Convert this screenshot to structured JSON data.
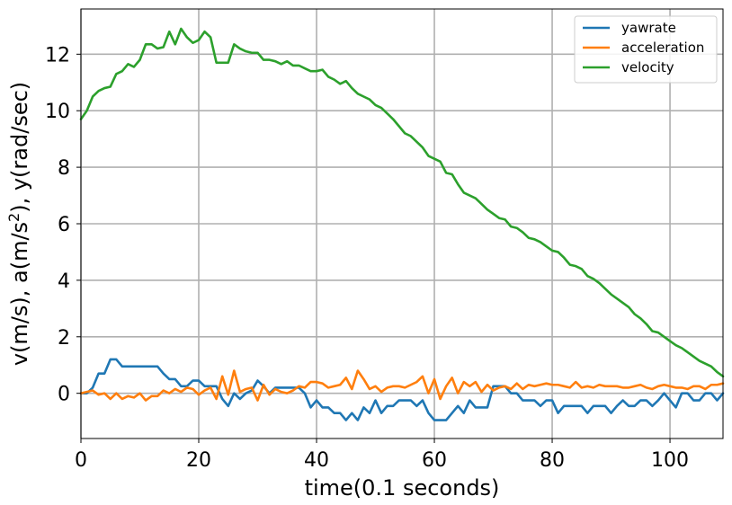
{
  "chart_data": {
    "type": "line",
    "title": "",
    "xlabel": "time(0.1 seconds)",
    "ylabel_parts": {
      "base": "v(m/s), a(m/s",
      "sup": "2",
      "tail": "), y(rad/sec)"
    },
    "xlim": [
      0,
      109
    ],
    "ylim": [
      -1.6,
      13.6
    ],
    "xticks": [
      0,
      20,
      40,
      60,
      80,
      100
    ],
    "yticks": [
      0,
      2,
      4,
      6,
      8,
      10,
      12
    ],
    "grid": true,
    "legend_position": "top-right",
    "series": [
      {
        "name": "yawrate",
        "color": "#1f77b4",
        "values": [
          0,
          0,
          0.2,
          0.7,
          0.7,
          1.2,
          1.2,
          0.95,
          0.95,
          0.95,
          0.95,
          0.95,
          0.95,
          0.95,
          0.7,
          0.5,
          0.5,
          0.25,
          0.25,
          0.45,
          0.45,
          0.25,
          0.25,
          0.25,
          -0.2,
          -0.45,
          0,
          -0.2,
          0,
          0.1,
          0.45,
          0.25,
          0,
          0.2,
          0.2,
          0.2,
          0.2,
          0.2,
          0,
          -0.5,
          -0.25,
          -0.5,
          -0.5,
          -0.7,
          -0.7,
          -0.95,
          -0.7,
          -0.95,
          -0.5,
          -0.7,
          -0.25,
          -0.7,
          -0.45,
          -0.45,
          -0.25,
          -0.25,
          -0.25,
          -0.45,
          -0.25,
          -0.7,
          -0.95,
          -0.95,
          -0.95,
          -0.7,
          -0.45,
          -0.7,
          -0.25,
          -0.5,
          -0.5,
          -0.5,
          0.25,
          0.25,
          0.25,
          0,
          0,
          -0.25,
          -0.25,
          -0.25,
          -0.45,
          -0.25,
          -0.25,
          -0.7,
          -0.45,
          -0.45,
          -0.45,
          -0.45,
          -0.7,
          -0.45,
          -0.45,
          -0.45,
          -0.7,
          -0.45,
          -0.25,
          -0.45,
          -0.45,
          -0.25,
          -0.25,
          -0.45,
          -0.25,
          0,
          -0.25,
          -0.5,
          0,
          0,
          -0.25,
          -0.25,
          0,
          0,
          -0.25,
          0
        ]
      },
      {
        "name": "acceleration",
        "color": "#ff7f0e",
        "values": [
          0,
          0.05,
          0.1,
          -0.05,
          0,
          -0.2,
          0,
          -0.2,
          -0.1,
          -0.15,
          0,
          -0.25,
          -0.1,
          -0.1,
          0.1,
          0,
          0.15,
          0.05,
          0.2,
          0.15,
          -0.05,
          0.1,
          0.2,
          -0.2,
          0.6,
          -0.05,
          0.8,
          0.05,
          0.15,
          0.2,
          -0.25,
          0.3,
          -0.05,
          0.15,
          0.05,
          0,
          0.1,
          0.25,
          0.2,
          0.4,
          0.4,
          0.35,
          0.2,
          0.25,
          0.3,
          0.55,
          0.15,
          0.8,
          0.5,
          0.15,
          0.25,
          0.05,
          0.2,
          0.25,
          0.25,
          0.2,
          0.3,
          0.4,
          0.6,
          0,
          0.5,
          -0.2,
          0.25,
          0.55,
          0,
          0.4,
          0.25,
          0.4,
          0.05,
          0.3,
          0.1,
          0.2,
          0.25,
          0.15,
          0.35,
          0.15,
          0.3,
          0.25,
          0.3,
          0.35,
          0.3,
          0.3,
          0.25,
          0.2,
          0.4,
          0.2,
          0.25,
          0.2,
          0.3,
          0.25,
          0.25,
          0.25,
          0.2,
          0.2,
          0.25,
          0.3,
          0.2,
          0.15,
          0.25,
          0.3,
          0.25,
          0.2,
          0.2,
          0.15,
          0.25,
          0.25,
          0.15,
          0.3,
          0.3,
          0.35
        ]
      },
      {
        "name": "velocity",
        "color": "#2ca02c",
        "values": [
          9.7,
          10.0,
          10.5,
          10.7,
          10.8,
          10.85,
          11.3,
          11.4,
          11.65,
          11.55,
          11.8,
          12.35,
          12.35,
          12.2,
          12.25,
          12.8,
          12.35,
          12.9,
          12.6,
          12.4,
          12.5,
          12.8,
          12.6,
          11.7,
          11.7,
          11.7,
          12.35,
          12.2,
          12.1,
          12.05,
          12.05,
          11.8,
          11.8,
          11.75,
          11.65,
          11.75,
          11.6,
          11.6,
          11.5,
          11.4,
          11.4,
          11.45,
          11.2,
          11.1,
          10.95,
          11.05,
          10.8,
          10.6,
          10.5,
          10.4,
          10.2,
          10.1,
          9.9,
          9.7,
          9.45,
          9.2,
          9.1,
          8.9,
          8.7,
          8.4,
          8.3,
          8.2,
          7.8,
          7.75,
          7.4,
          7.1,
          7.0,
          6.9,
          6.7,
          6.5,
          6.35,
          6.2,
          6.15,
          5.9,
          5.85,
          5.7,
          5.5,
          5.45,
          5.35,
          5.2,
          5.05,
          5.0,
          4.8,
          4.55,
          4.5,
          4.4,
          4.15,
          4.05,
          3.9,
          3.7,
          3.5,
          3.35,
          3.2,
          3.05,
          2.8,
          2.65,
          2.45,
          2.2,
          2.15,
          2.0,
          1.85,
          1.7,
          1.6,
          1.45,
          1.3,
          1.15,
          1.05,
          0.95,
          0.75,
          0.6
        ]
      }
    ]
  }
}
